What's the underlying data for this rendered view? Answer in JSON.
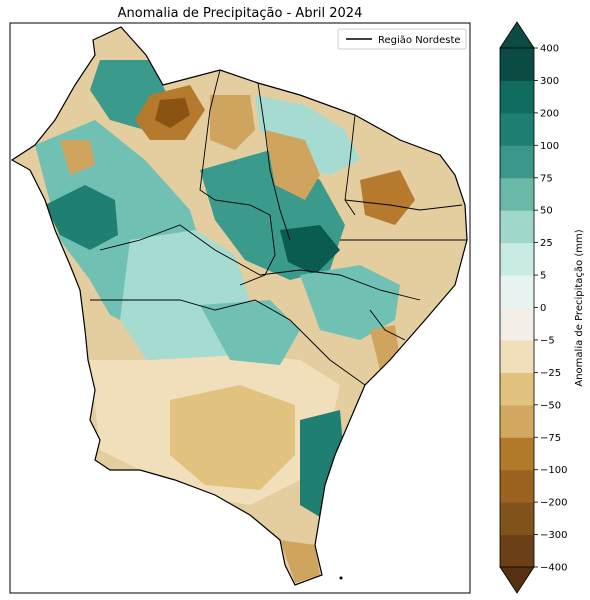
{
  "map": {
    "title": "Anomalia de Precipitação - Abril 2024",
    "legend": {
      "label": "Região Nordeste",
      "line_color": "#000000"
    },
    "region_fill_colors": [
      "#0a5c50",
      "#1f7f72",
      "#3a9a8c",
      "#70c0b3",
      "#a5dbd1",
      "#d3eee8",
      "#f2ece0",
      "#f1dfbc",
      "#e1c27f",
      "#cfa45f",
      "#b67a2f",
      "#8a5314"
    ]
  },
  "colorbar": {
    "label": "Anomalia de Precipitação (mm)",
    "min_label": "−400",
    "max_label": "400",
    "levels": [
      {
        "label": "−400",
        "color": "#553111"
      },
      {
        "label": "−300",
        "color": "#6b4016"
      },
      {
        "label": "−200",
        "color": "#80531a"
      },
      {
        "label": "−100",
        "color": "#9b6220"
      },
      {
        "label": "−75",
        "color": "#b47a2b"
      },
      {
        "label": "−50",
        "color": "#d2a861"
      },
      {
        "label": "−25",
        "color": "#e1c27f"
      },
      {
        "label": "−5",
        "color": "#f1dfbc"
      },
      {
        "label": "0",
        "color": "#f3efe7"
      },
      {
        "label": "5",
        "color": "#e8f4f1"
      },
      {
        "label": "25",
        "color": "#c8ebe3"
      },
      {
        "label": "50",
        "color": "#9fd7cb"
      },
      {
        "label": "75",
        "color": "#69b8a8"
      },
      {
        "label": "100",
        "color": "#3a978a"
      },
      {
        "label": "200",
        "color": "#1f7f72"
      },
      {
        "label": "300",
        "color": "#0f6b5e"
      },
      {
        "label": "400",
        "color": "#0a4c43"
      }
    ]
  }
}
